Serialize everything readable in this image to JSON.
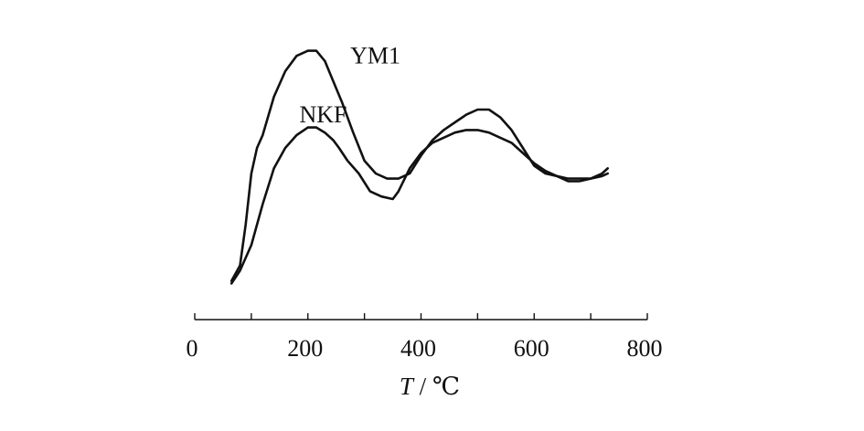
{
  "chart_data": {
    "type": "line",
    "title": "",
    "xlabel_var": "T",
    "xlabel_sep": " / ",
    "xlabel_unit": "℃",
    "ylabel": "",
    "xlim": [
      0,
      800
    ],
    "ylim": [
      0,
      100
    ],
    "xticks": [
      0,
      200,
      400,
      600,
      800
    ],
    "grid": false,
    "legend": "none",
    "series": [
      {
        "name": "YM1",
        "label_anchor": [
          275,
          93
        ],
        "x": [
          65,
          80,
          90,
          100,
          110,
          120,
          140,
          160,
          180,
          200,
          215,
          230,
          245,
          260,
          280,
          300,
          320,
          340,
          360,
          380,
          400,
          420,
          440,
          460,
          480,
          500,
          520,
          540,
          560,
          580,
          600,
          620,
          640,
          660,
          680,
          700,
          720,
          730
        ],
        "y": [
          8,
          14,
          30,
          50,
          60,
          65,
          80,
          90,
          96,
          98,
          98,
          94,
          86,
          78,
          66,
          55,
          50,
          48,
          48,
          50,
          57,
          63,
          67,
          70,
          73,
          75,
          75,
          72,
          67,
          60,
          53,
          50,
          49,
          48,
          48,
          48,
          50,
          52
        ]
      },
      {
        "name": "NKF",
        "label_anchor": [
          185,
          70
        ],
        "x": [
          65,
          80,
          100,
          120,
          140,
          160,
          180,
          200,
          215,
          230,
          245,
          255,
          270,
          290,
          310,
          330,
          350,
          360,
          380,
          400,
          420,
          440,
          460,
          480,
          500,
          520,
          540,
          560,
          580,
          600,
          620,
          640,
          660,
          680,
          700,
          720,
          730
        ],
        "y": [
          7,
          12,
          22,
          38,
          52,
          60,
          65,
          68,
          68,
          66,
          63,
          60,
          55,
          50,
          43,
          41,
          40,
          43,
          52,
          58,
          62,
          64,
          66,
          67,
          67,
          66,
          64,
          62,
          58,
          54,
          51,
          49,
          47,
          47,
          48,
          49,
          50
        ]
      }
    ]
  }
}
